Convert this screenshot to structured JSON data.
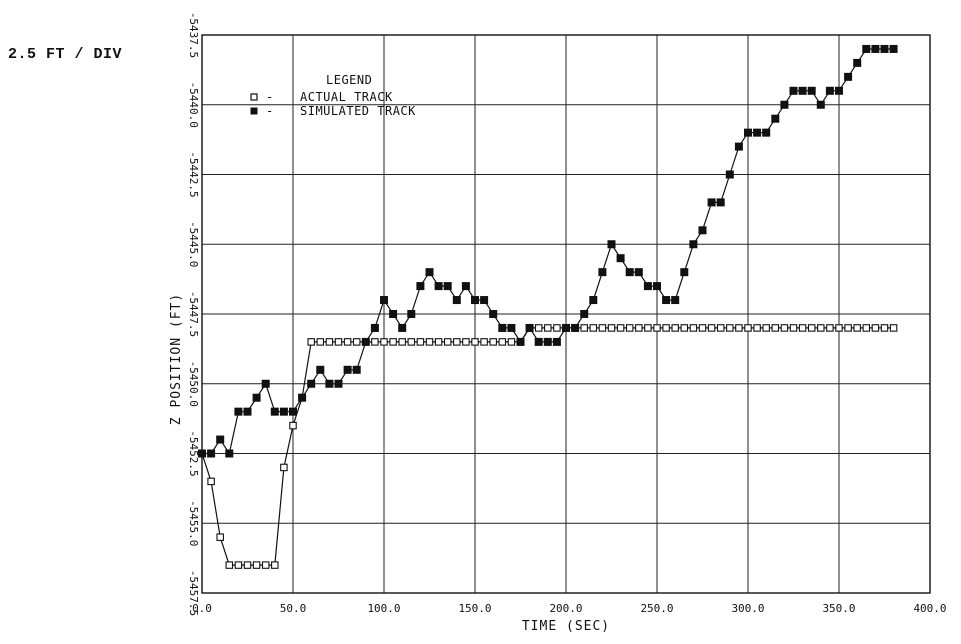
{
  "scale_note": "2.5 FT / DIV",
  "chart_data": {
    "type": "line",
    "title": "",
    "xlabel": "TIME (SEC)",
    "ylabel": "Z POSITION (FT)",
    "xlim": [
      0,
      400
    ],
    "ylim": [
      -5457.5,
      -5437.5
    ],
    "x_ticks": [
      0,
      50,
      100,
      150,
      200,
      250,
      300,
      350,
      400
    ],
    "x_tick_labels": [
      "0.0",
      "50.0",
      "100.0",
      "150.0",
      "200.0",
      "250.0",
      "300.0",
      "350.0",
      "400.0"
    ],
    "y_ticks": [
      -5437.5,
      -5440.0,
      -5442.5,
      -5445.0,
      -5447.5,
      -5450.0,
      -5452.5,
      -5455.0,
      -5457.5
    ],
    "y_tick_labels": [
      "-5437.5",
      "-5440.0",
      "-5442.5",
      "-5445.0",
      "-5447.5",
      "-5450.0",
      "-5452.5",
      "-5455.0",
      "-5457.5"
    ],
    "grid": true,
    "legend": {
      "title": "LEGEND",
      "placement": "top-left"
    },
    "series": [
      {
        "name": "ACTUAL TRACK",
        "marker": "open-square",
        "x": [
          0,
          5,
          10,
          15,
          20,
          25,
          30,
          35,
          40,
          45,
          50,
          55,
          60,
          65,
          70,
          75,
          80,
          85,
          90,
          95,
          100,
          105,
          110,
          115,
          120,
          125,
          130,
          135,
          140,
          145,
          150,
          155,
          160,
          165,
          170,
          175,
          180,
          185,
          190,
          195,
          200,
          205,
          210,
          215,
          220,
          225,
          230,
          235,
          240,
          245,
          250,
          255,
          260,
          265,
          270,
          275,
          280,
          285,
          290,
          295,
          300,
          305,
          310,
          315,
          320,
          325,
          330,
          335,
          340,
          345,
          350,
          355,
          360,
          365,
          370,
          375,
          380
        ],
        "y": [
          -5452.5,
          -5453.5,
          -5455.5,
          -5456.5,
          -5456.5,
          -5456.5,
          -5456.5,
          -5456.5,
          -5456.5,
          -5453.0,
          -5451.5,
          -5450.5,
          -5448.5,
          -5448.5,
          -5448.5,
          -5448.5,
          -5448.5,
          -5448.5,
          -5448.5,
          -5448.5,
          -5448.5,
          -5448.5,
          -5448.5,
          -5448.5,
          -5448.5,
          -5448.5,
          -5448.5,
          -5448.5,
          -5448.5,
          -5448.5,
          -5448.5,
          -5448.5,
          -5448.5,
          -5448.5,
          -5448.5,
          -5448.5,
          -5448.0,
          -5448.0,
          -5448.0,
          -5448.0,
          -5448.0,
          -5448.0,
          -5448.0,
          -5448.0,
          -5448.0,
          -5448.0,
          -5448.0,
          -5448.0,
          -5448.0,
          -5448.0,
          -5448.0,
          -5448.0,
          -5448.0,
          -5448.0,
          -5448.0,
          -5448.0,
          -5448.0,
          -5448.0,
          -5448.0,
          -5448.0,
          -5448.0,
          -5448.0,
          -5448.0,
          -5448.0,
          -5448.0,
          -5448.0,
          -5448.0,
          -5448.0,
          -5448.0,
          -5448.0,
          -5448.0,
          -5448.0,
          -5448.0,
          -5448.0,
          -5448.0,
          -5448.0,
          -5448.0
        ]
      },
      {
        "name": "SIMULATED TRACK",
        "marker": "filled-square",
        "x": [
          0,
          5,
          10,
          15,
          20,
          25,
          30,
          35,
          40,
          45,
          50,
          55,
          60,
          65,
          70,
          75,
          80,
          85,
          90,
          95,
          100,
          105,
          110,
          115,
          120,
          125,
          130,
          135,
          140,
          145,
          150,
          155,
          160,
          165,
          170,
          175,
          180,
          185,
          190,
          195,
          200,
          205,
          210,
          215,
          220,
          225,
          230,
          235,
          240,
          245,
          250,
          255,
          260,
          265,
          270,
          275,
          280,
          285,
          290,
          295,
          300,
          305,
          310,
          315,
          320,
          325,
          330,
          335,
          340,
          345,
          350,
          355,
          360,
          365,
          370,
          375,
          380
        ],
        "y": [
          -5452.5,
          -5452.5,
          -5452.0,
          -5452.5,
          -5451.0,
          -5451.0,
          -5450.5,
          -5450.0,
          -5451.0,
          -5451.0,
          -5451.0,
          -5450.5,
          -5450.0,
          -5449.5,
          -5450.0,
          -5450.0,
          -5449.5,
          -5449.5,
          -5448.5,
          -5448.0,
          -5447.0,
          -5447.5,
          -5448.0,
          -5447.5,
          -5446.5,
          -5446.0,
          -5446.5,
          -5446.5,
          -5447.0,
          -5446.5,
          -5447.0,
          -5447.0,
          -5447.5,
          -5448.0,
          -5448.0,
          -5448.5,
          -5448.0,
          -5448.5,
          -5448.5,
          -5448.5,
          -5448.0,
          -5448.0,
          -5447.5,
          -5447.0,
          -5446.0,
          -5445.0,
          -5445.5,
          -5446.0,
          -5446.0,
          -5446.5,
          -5446.5,
          -5447.0,
          -5447.0,
          -5446.0,
          -5445.0,
          -5444.5,
          -5443.5,
          -5443.5,
          -5442.5,
          -5441.5,
          -5441.0,
          -5441.0,
          -5441.0,
          -5440.5,
          -5440.0,
          -5439.5,
          -5439.5,
          -5439.5,
          -5440.0,
          -5439.5,
          -5439.5,
          -5439.0,
          -5438.5,
          -5438.0,
          -5438.0,
          -5438.0,
          -5438.0
        ]
      }
    ]
  }
}
